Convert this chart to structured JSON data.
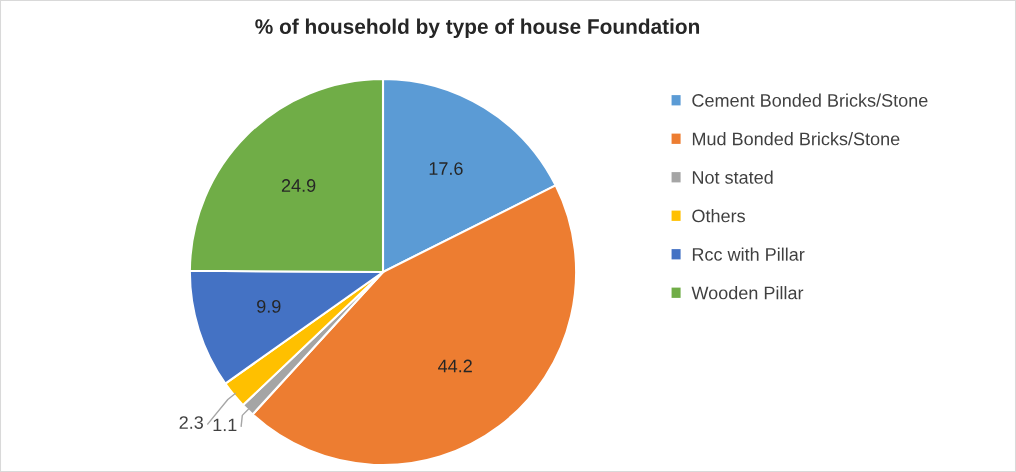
{
  "chart_data": {
    "type": "pie",
    "title": "% of household by type of house Foundation",
    "categories": [
      "Cement Bonded Bricks/Stone",
      "Mud Bonded Bricks/Stone",
      "Not stated",
      "Others",
      "Rcc with Pillar",
      "Wooden Pillar"
    ],
    "values": [
      17.6,
      44.2,
      1.1,
      2.3,
      9.9,
      24.9
    ],
    "colors": [
      "#5b9bd5",
      "#ed7d31",
      "#a5a5a5",
      "#ffc000",
      "#4472c4",
      "#70ad47"
    ],
    "data_labels": true,
    "legend": "right"
  }
}
